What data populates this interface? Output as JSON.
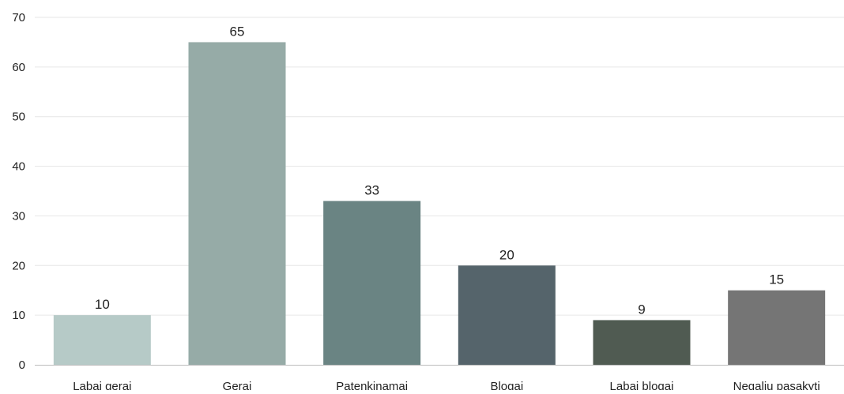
{
  "chart_data": {
    "type": "bar",
    "title": "",
    "xlabel": "",
    "ylabel": "",
    "categories": [
      "Labai gerai",
      "Gerai",
      "Patenkinamai",
      "Blogai",
      "Labai blogai",
      "Negaliu pasakyti"
    ],
    "values": [
      10,
      65,
      33,
      20,
      9,
      15
    ],
    "data_labels": [
      "10",
      "65",
      "33",
      "20",
      "9",
      "15"
    ],
    "ylim": [
      0,
      70
    ],
    "yticks": [
      "0",
      "10",
      "20",
      "30",
      "40",
      "50",
      "60",
      "70"
    ],
    "grid": true,
    "legend": "none",
    "bar_colors": [
      "#b6cac7",
      "#96aba7",
      "#6a8483",
      "#55646b",
      "#505b52",
      "#757575"
    ],
    "colors": {
      "grid": "#e6e6e6",
      "axis": "#bdbdbd",
      "text": "#222222"
    }
  }
}
